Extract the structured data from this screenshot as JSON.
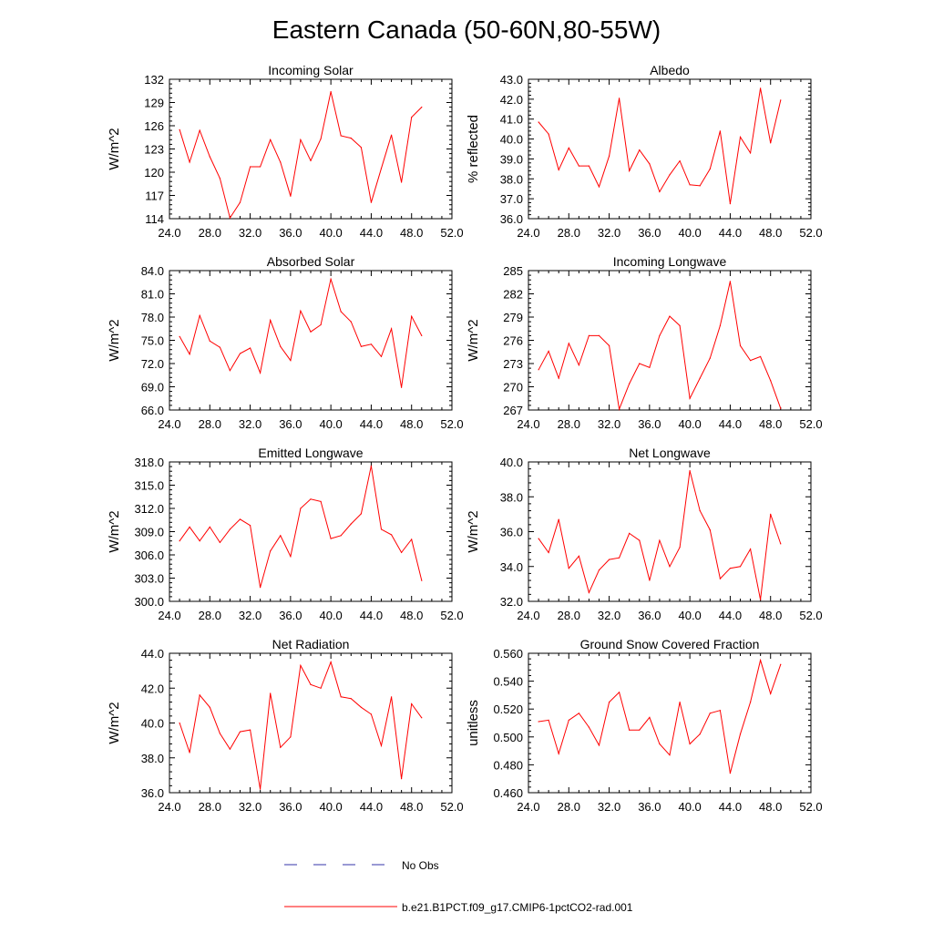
{
  "figure": {
    "title": "Eastern Canada (50-60N,80-55W)",
    "line_color": "#ff0000",
    "obs_color": "#3333aa"
  },
  "legend": {
    "items": [
      {
        "label": "No Obs",
        "style": "dashed",
        "color": "#3333aa"
      },
      {
        "label": "b.e21.B1PCT.f09_g17.CMIP6-1pctCO2-rad.001",
        "style": "solid",
        "color": "#ff0000"
      }
    ]
  },
  "chart_data": [
    {
      "type": "line",
      "title": "Incoming Solar",
      "ylabel": "W/m^2",
      "xlim": [
        24,
        52
      ],
      "ylim": [
        114,
        132
      ],
      "xticks": [
        "24.0",
        "28.0",
        "32.0",
        "36.0",
        "40.0",
        "44.0",
        "48.0",
        "52.0"
      ],
      "yticks": [
        "114",
        "117",
        "120",
        "123",
        "126",
        "129",
        "132"
      ],
      "x": [
        25,
        26,
        27,
        28,
        29,
        30,
        31,
        32,
        33,
        34,
        35,
        36,
        37,
        38,
        39,
        40,
        41,
        42,
        43,
        44,
        45,
        46,
        47,
        48,
        49
      ],
      "series": [
        {
          "values": [
            125.5,
            121.3,
            125.4,
            122.0,
            119.2,
            114.1,
            116.1,
            120.7,
            120.7,
            124.2,
            121.3,
            116.9,
            124.2,
            121.5,
            124.3,
            130.4,
            124.7,
            124.4,
            123.2,
            116.1,
            120.5,
            124.8,
            118.7,
            127.1,
            128.4
          ]
        }
      ]
    },
    {
      "type": "line",
      "title": "Albedo",
      "ylabel": "% reflected",
      "xlim": [
        24,
        52
      ],
      "ylim": [
        36.0,
        43.0
      ],
      "xticks": [
        "24.0",
        "28.0",
        "32.0",
        "36.0",
        "40.0",
        "44.0",
        "48.0",
        "52.0"
      ],
      "yticks": [
        "36.0",
        "37.0",
        "38.0",
        "39.0",
        "40.0",
        "41.0",
        "42.0",
        "43.0"
      ],
      "x": [
        25,
        26,
        27,
        28,
        29,
        30,
        31,
        32,
        33,
        34,
        35,
        36,
        37,
        38,
        39,
        40,
        41,
        42,
        43,
        44,
        45,
        46,
        47,
        48,
        49
      ],
      "series": [
        {
          "values": [
            40.85,
            40.25,
            38.45,
            39.55,
            38.65,
            38.65,
            37.6,
            39.15,
            42.05,
            38.4,
            39.45,
            38.75,
            37.35,
            38.2,
            38.9,
            37.7,
            37.65,
            38.5,
            40.4,
            36.75,
            40.1,
            39.3,
            42.55,
            39.8,
            41.95
          ]
        }
      ]
    },
    {
      "type": "line",
      "title": "Absorbed Solar",
      "ylabel": "W/m^2",
      "xlim": [
        24,
        52
      ],
      "ylim": [
        66.0,
        84.0
      ],
      "xticks": [
        "24.0",
        "28.0",
        "32.0",
        "36.0",
        "40.0",
        "44.0",
        "48.0",
        "52.0"
      ],
      "yticks": [
        "66.0",
        "69.0",
        "72.0",
        "75.0",
        "78.0",
        "81.0",
        "84.0"
      ],
      "x": [
        25,
        26,
        27,
        28,
        29,
        30,
        31,
        32,
        33,
        34,
        35,
        36,
        37,
        38,
        39,
        40,
        41,
        42,
        43,
        44,
        45,
        46,
        47,
        48,
        49
      ],
      "series": [
        {
          "values": [
            75.5,
            73.2,
            78.2,
            74.9,
            74.1,
            71.1,
            73.3,
            74.0,
            70.8,
            77.6,
            74.2,
            72.4,
            78.8,
            76.1,
            77.0,
            82.9,
            78.7,
            77.4,
            74.2,
            74.5,
            72.9,
            76.5,
            68.9,
            78.1,
            75.6
          ]
        }
      ]
    },
    {
      "type": "line",
      "title": "Incoming Longwave",
      "ylabel": "W/m^2",
      "xlim": [
        24,
        52
      ],
      "ylim": [
        267,
        285
      ],
      "xticks": [
        "24.0",
        "28.0",
        "32.0",
        "36.0",
        "40.0",
        "44.0",
        "48.0",
        "52.0"
      ],
      "yticks": [
        "267",
        "270",
        "273",
        "276",
        "279",
        "282",
        "285"
      ],
      "x": [
        25,
        26,
        27,
        28,
        29,
        30,
        31,
        32,
        33,
        34,
        35,
        36,
        37,
        38,
        39,
        40,
        41,
        42,
        43,
        44,
        45,
        46,
        47,
        48,
        49
      ],
      "series": [
        {
          "values": [
            272.2,
            274.6,
            271.1,
            275.6,
            272.8,
            276.6,
            276.6,
            275.3,
            267.1,
            270.4,
            273.0,
            272.5,
            276.6,
            279.1,
            277.9,
            268.5,
            271.1,
            273.7,
            277.9,
            283.6,
            275.3,
            273.4,
            273.9,
            270.8,
            267.2
          ]
        }
      ]
    },
    {
      "type": "line",
      "title": "Emitted Longwave",
      "ylabel": "W/m^2",
      "xlim": [
        24,
        52
      ],
      "ylim": [
        300.0,
        318.0
      ],
      "xticks": [
        "24.0",
        "28.0",
        "32.0",
        "36.0",
        "40.0",
        "44.0",
        "48.0",
        "52.0"
      ],
      "yticks": [
        "300.0",
        "303.0",
        "306.0",
        "309.0",
        "312.0",
        "315.0",
        "318.0"
      ],
      "x": [
        25,
        26,
        27,
        28,
        29,
        30,
        31,
        32,
        33,
        34,
        35,
        36,
        37,
        38,
        39,
        40,
        41,
        42,
        43,
        44,
        45,
        46,
        47,
        48,
        49
      ],
      "series": [
        {
          "values": [
            307.8,
            309.6,
            307.8,
            309.6,
            307.6,
            309.3,
            310.6,
            309.8,
            301.8,
            306.5,
            308.5,
            305.8,
            312.0,
            313.2,
            312.9,
            308.1,
            308.5,
            310.0,
            311.3,
            317.5,
            309.3,
            308.6,
            306.3,
            308.0,
            302.7
          ]
        }
      ]
    },
    {
      "type": "line",
      "title": "Net Longwave",
      "ylabel": "W/m^2",
      "xlim": [
        24,
        52
      ],
      "ylim": [
        32.0,
        40.0
      ],
      "xticks": [
        "24.0",
        "28.0",
        "32.0",
        "36.0",
        "40.0",
        "44.0",
        "48.0",
        "52.0"
      ],
      "yticks": [
        "32.0",
        "34.0",
        "36.0",
        "38.0",
        "40.0"
      ],
      "x": [
        25,
        26,
        27,
        28,
        29,
        30,
        31,
        32,
        33,
        34,
        35,
        36,
        37,
        38,
        39,
        40,
        41,
        42,
        43,
        44,
        45,
        46,
        47,
        48,
        49
      ],
      "series": [
        {
          "values": [
            35.6,
            34.8,
            36.7,
            33.9,
            34.6,
            32.5,
            33.8,
            34.4,
            34.5,
            35.9,
            35.5,
            33.2,
            35.5,
            34.0,
            35.1,
            39.5,
            37.2,
            36.1,
            33.3,
            33.9,
            34.0,
            35.0,
            32.1,
            37.0,
            35.3
          ]
        }
      ]
    },
    {
      "type": "line",
      "title": "Net Radiation",
      "ylabel": "W/m^2",
      "xlim": [
        24,
        52
      ],
      "ylim": [
        36.0,
        44.0
      ],
      "xticks": [
        "24.0",
        "28.0",
        "32.0",
        "36.0",
        "40.0",
        "44.0",
        "48.0",
        "52.0"
      ],
      "yticks": [
        "36.0",
        "38.0",
        "40.0",
        "42.0",
        "44.0"
      ],
      "x": [
        25,
        26,
        27,
        28,
        29,
        30,
        31,
        32,
        33,
        34,
        35,
        36,
        37,
        38,
        39,
        40,
        41,
        42,
        43,
        44,
        45,
        46,
        47,
        48,
        49
      ],
      "series": [
        {
          "values": [
            40.0,
            38.3,
            41.6,
            40.9,
            39.4,
            38.5,
            39.5,
            39.6,
            36.2,
            41.7,
            38.6,
            39.2,
            43.3,
            42.2,
            42.0,
            43.5,
            41.5,
            41.4,
            40.9,
            40.5,
            38.7,
            41.5,
            36.8,
            41.1,
            40.3
          ]
        }
      ]
    },
    {
      "type": "line",
      "title": "Ground Snow Covered Fraction",
      "ylabel": "unitless",
      "xlim": [
        24,
        52
      ],
      "ylim": [
        0.46,
        0.56
      ],
      "xticks": [
        "24.0",
        "28.0",
        "32.0",
        "36.0",
        "40.0",
        "44.0",
        "48.0",
        "52.0"
      ],
      "yticks": [
        "0.460",
        "0.480",
        "0.500",
        "0.520",
        "0.540",
        "0.560"
      ],
      "x": [
        25,
        26,
        27,
        28,
        29,
        30,
        31,
        32,
        33,
        34,
        35,
        36,
        37,
        38,
        39,
        40,
        41,
        42,
        43,
        44,
        45,
        46,
        47,
        48,
        49
      ],
      "series": [
        {
          "values": [
            0.511,
            0.512,
            0.488,
            0.512,
            0.517,
            0.507,
            0.494,
            0.525,
            0.532,
            0.505,
            0.505,
            0.514,
            0.495,
            0.487,
            0.525,
            0.495,
            0.502,
            0.517,
            0.519,
            0.474,
            0.502,
            0.525,
            0.555,
            0.531,
            0.552
          ]
        }
      ]
    }
  ]
}
